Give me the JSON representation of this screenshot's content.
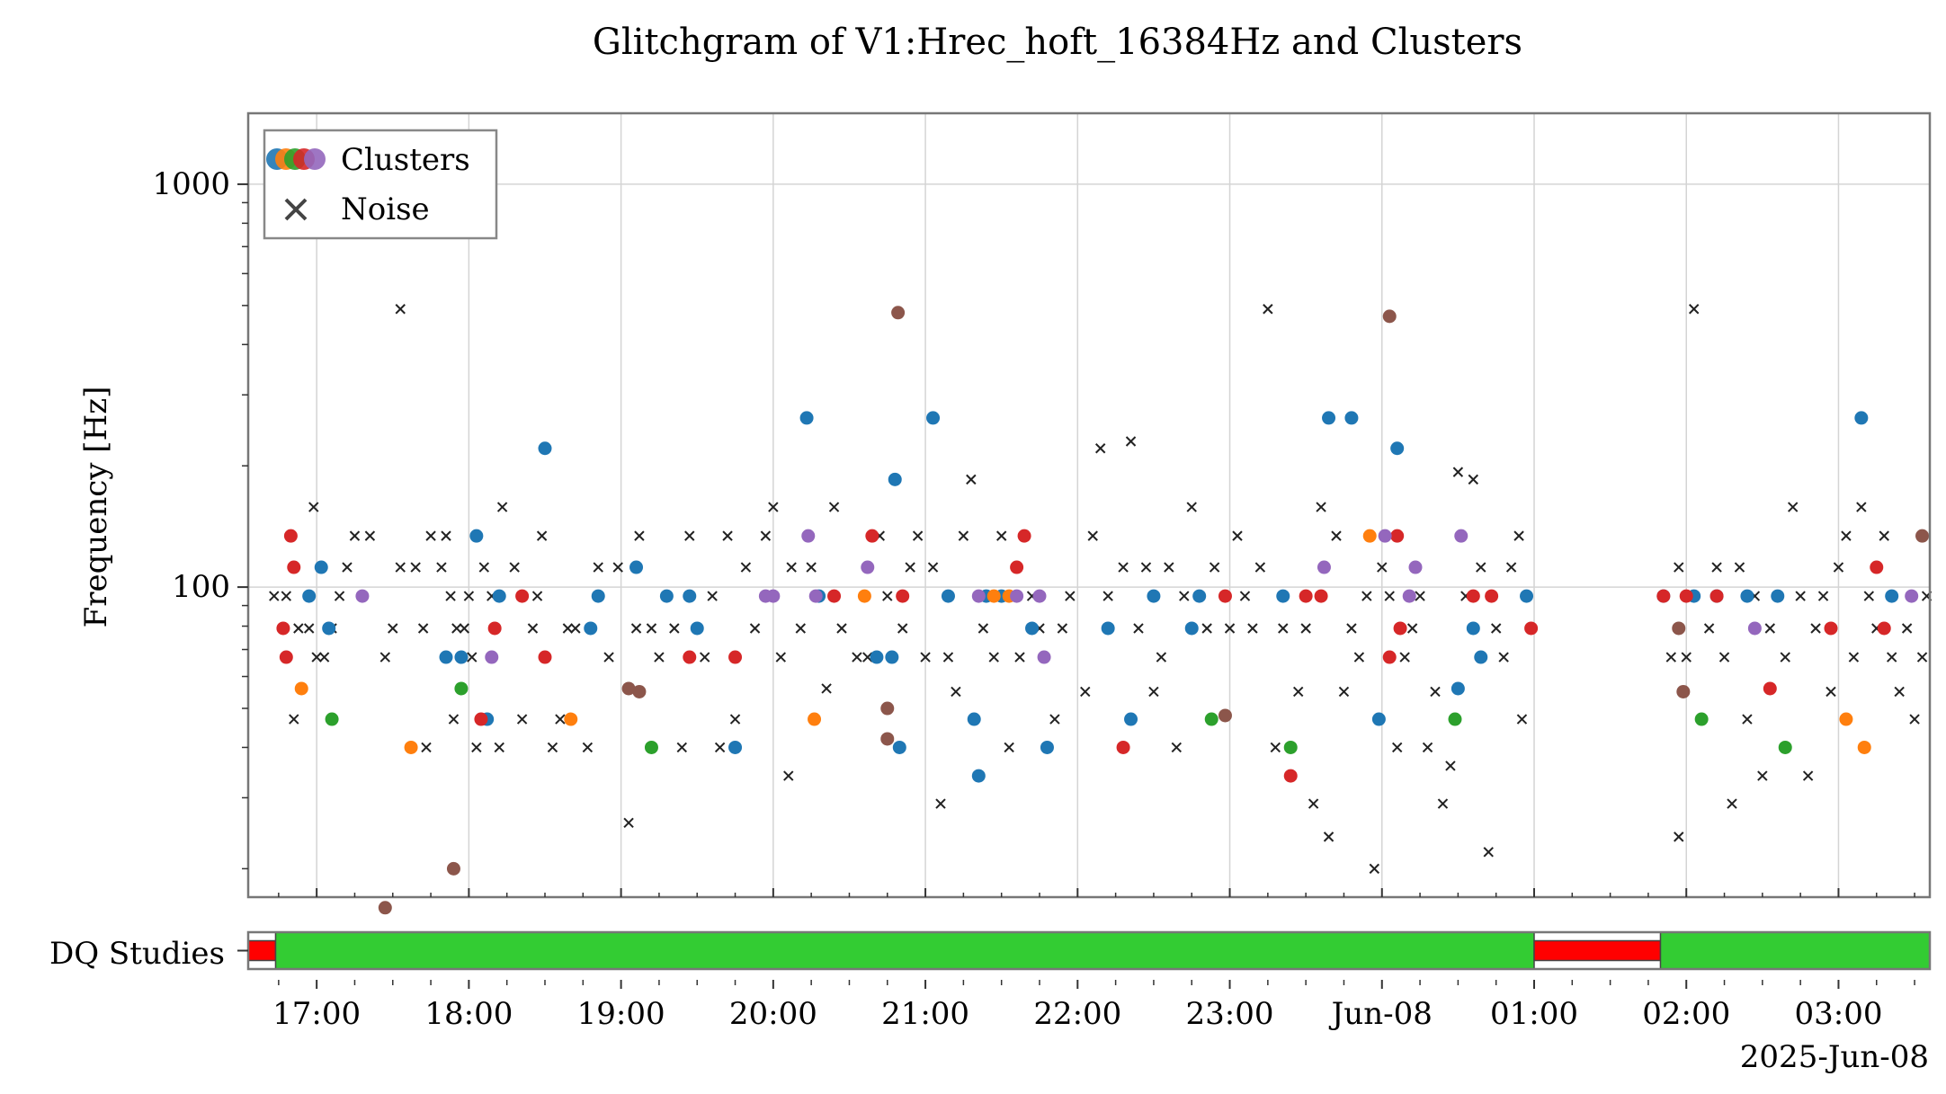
{
  "chart_data": {
    "type": "scatter",
    "title": "Glitchgram of V1:Hrec_hoft_16384Hz and Clusters",
    "ylabel": "Frequency [Hz]",
    "yscale": "log",
    "ylim": [
      17,
      1500
    ],
    "y_ticks": [
      100,
      1000
    ],
    "y_tick_labels": [
      "100",
      "1000"
    ],
    "xlim": [
      16.55,
      27.6
    ],
    "x_ticks": [
      17,
      18,
      19,
      20,
      21,
      22,
      23,
      24,
      25,
      26,
      27
    ],
    "x_tick_labels": [
      "17:00",
      "18:00",
      "19:00",
      "20:00",
      "21:00",
      "22:00",
      "23:00",
      "Jun-08",
      "01:00",
      "02:00",
      "03:00"
    ],
    "x_date_label": "2025-Jun-08",
    "grid": true,
    "legend": {
      "placement": "top-left",
      "entries": [
        "Clusters",
        "Noise"
      ]
    },
    "colors": {
      "cluster_colors": [
        "#1f77b4",
        "#ff7f0e",
        "#2ca02c",
        "#d62728",
        "#9467bd",
        "#8c564b"
      ],
      "noise": "#222222",
      "dq_good": "#33cc33",
      "dq_bad": "#ff0000"
    },
    "clusters": [
      {
        "color_index": 0,
        "points": [
          [
            17.03,
            112
          ],
          [
            17.08,
            79
          ],
          [
            16.95,
            95
          ],
          [
            17.85,
            67
          ],
          [
            17.95,
            67
          ],
          [
            18.05,
            134
          ],
          [
            18.2,
            95
          ],
          [
            18.12,
            47
          ],
          [
            18.5,
            221
          ],
          [
            18.8,
            79
          ],
          [
            18.85,
            95
          ],
          [
            19.1,
            112
          ],
          [
            19.3,
            95
          ],
          [
            19.45,
            95
          ],
          [
            19.5,
            79
          ],
          [
            19.75,
            40
          ],
          [
            20.22,
            263
          ],
          [
            20.3,
            95
          ],
          [
            20.68,
            67
          ],
          [
            20.78,
            67
          ],
          [
            20.8,
            185
          ],
          [
            20.83,
            40
          ],
          [
            21.05,
            263
          ],
          [
            21.15,
            95
          ],
          [
            21.32,
            47
          ],
          [
            21.35,
            34
          ],
          [
            21.4,
            95
          ],
          [
            21.5,
            95
          ],
          [
            21.7,
            79
          ],
          [
            21.8,
            40
          ],
          [
            22.2,
            79
          ],
          [
            22.35,
            47
          ],
          [
            22.5,
            95
          ],
          [
            22.75,
            79
          ],
          [
            22.8,
            95
          ],
          [
            23.35,
            95
          ],
          [
            23.65,
            263
          ],
          [
            23.8,
            263
          ],
          [
            23.98,
            47
          ],
          [
            24.1,
            221
          ],
          [
            24.5,
            56
          ],
          [
            24.6,
            79
          ],
          [
            24.65,
            67
          ],
          [
            24.95,
            95
          ],
          [
            25.85,
            95
          ],
          [
            26.05,
            95
          ],
          [
            26.2,
            95
          ],
          [
            26.4,
            95
          ],
          [
            26.6,
            95
          ],
          [
            27.15,
            263
          ],
          [
            27.35,
            95
          ]
        ]
      },
      {
        "color_index": 1,
        "points": [
          [
            16.9,
            56
          ],
          [
            17.62,
            40
          ],
          [
            18.67,
            47
          ],
          [
            20.27,
            47
          ],
          [
            20.6,
            95
          ],
          [
            21.45,
            95
          ],
          [
            21.55,
            95
          ],
          [
            23.92,
            134
          ],
          [
            27.05,
            47
          ],
          [
            27.17,
            40
          ]
        ]
      },
      {
        "color_index": 2,
        "points": [
          [
            17.1,
            47
          ],
          [
            17.95,
            56
          ],
          [
            19.2,
            40
          ],
          [
            22.88,
            47
          ],
          [
            23.4,
            40
          ],
          [
            24.48,
            47
          ],
          [
            26.1,
            47
          ],
          [
            26.65,
            40
          ]
        ]
      },
      {
        "color_index": 3,
        "points": [
          [
            16.78,
            79
          ],
          [
            16.8,
            67
          ],
          [
            16.85,
            112
          ],
          [
            16.83,
            134
          ],
          [
            18.08,
            47
          ],
          [
            18.17,
            79
          ],
          [
            18.35,
            95
          ],
          [
            18.5,
            67
          ],
          [
            19.45,
            67
          ],
          [
            19.75,
            67
          ],
          [
            20.4,
            95
          ],
          [
            20.65,
            134
          ],
          [
            20.85,
            95
          ],
          [
            21.6,
            112
          ],
          [
            21.65,
            134
          ],
          [
            22.3,
            40
          ],
          [
            22.97,
            95
          ],
          [
            23.4,
            34
          ],
          [
            23.5,
            95
          ],
          [
            23.6,
            95
          ],
          [
            24.05,
            67
          ],
          [
            24.12,
            79
          ],
          [
            24.1,
            134
          ],
          [
            24.6,
            95
          ],
          [
            24.72,
            95
          ],
          [
            24.98,
            79
          ],
          [
            25.85,
            95
          ],
          [
            26.0,
            95
          ],
          [
            26.2,
            95
          ],
          [
            26.55,
            56
          ],
          [
            26.95,
            79
          ],
          [
            27.25,
            112
          ],
          [
            27.3,
            79
          ]
        ]
      },
      {
        "color_index": 4,
        "points": [
          [
            17.3,
            95
          ],
          [
            18.15,
            67
          ],
          [
            19.95,
            95
          ],
          [
            20.0,
            95
          ],
          [
            20.23,
            134
          ],
          [
            20.28,
            95
          ],
          [
            20.62,
            112
          ],
          [
            21.35,
            95
          ],
          [
            21.6,
            95
          ],
          [
            21.75,
            95
          ],
          [
            21.78,
            67
          ],
          [
            23.62,
            112
          ],
          [
            24.02,
            134
          ],
          [
            24.18,
            95
          ],
          [
            24.22,
            112
          ],
          [
            24.52,
            134
          ],
          [
            26.45,
            79
          ],
          [
            27.48,
            95
          ]
        ]
      },
      {
        "color_index": 5,
        "points": [
          [
            17.45,
            16
          ],
          [
            17.9,
            20
          ],
          [
            19.05,
            56
          ],
          [
            19.12,
            55
          ],
          [
            20.75,
            50
          ],
          [
            20.75,
            42
          ],
          [
            20.82,
            480
          ],
          [
            22.97,
            48
          ],
          [
            24.05,
            470
          ],
          [
            25.95,
            79
          ],
          [
            25.98,
            55
          ],
          [
            27.55,
            134
          ]
        ]
      }
    ],
    "noise": [
      [
        16.72,
        95
      ],
      [
        16.8,
        95
      ],
      [
        16.85,
        47
      ],
      [
        16.88,
        79
      ],
      [
        16.95,
        79
      ],
      [
        16.98,
        158
      ],
      [
        17.0,
        67
      ],
      [
        17.05,
        67
      ],
      [
        17.1,
        79
      ],
      [
        17.15,
        95
      ],
      [
        17.2,
        112
      ],
      [
        17.25,
        134
      ],
      [
        17.35,
        134
      ],
      [
        17.45,
        67
      ],
      [
        17.5,
        79
      ],
      [
        17.55,
        112
      ],
      [
        17.55,
        490
      ],
      [
        17.65,
        112
      ],
      [
        17.7,
        79
      ],
      [
        17.72,
        40
      ],
      [
        17.75,
        134
      ],
      [
        17.82,
        112
      ],
      [
        17.85,
        134
      ],
      [
        17.88,
        95
      ],
      [
        17.9,
        47
      ],
      [
        17.92,
        79
      ],
      [
        17.97,
        79
      ],
      [
        18.0,
        95
      ],
      [
        18.02,
        67
      ],
      [
        18.05,
        40
      ],
      [
        18.1,
        112
      ],
      [
        18.15,
        95
      ],
      [
        18.2,
        40
      ],
      [
        18.22,
        158
      ],
      [
        18.3,
        112
      ],
      [
        18.35,
        47
      ],
      [
        18.42,
        79
      ],
      [
        18.45,
        95
      ],
      [
        18.48,
        134
      ],
      [
        18.55,
        40
      ],
      [
        18.6,
        47
      ],
      [
        18.65,
        79
      ],
      [
        18.7,
        79
      ],
      [
        18.78,
        40
      ],
      [
        18.85,
        112
      ],
      [
        18.92,
        67
      ],
      [
        18.98,
        112
      ],
      [
        19.05,
        26
      ],
      [
        19.1,
        79
      ],
      [
        19.12,
        134
      ],
      [
        19.2,
        79
      ],
      [
        19.25,
        67
      ],
      [
        19.35,
        79
      ],
      [
        19.4,
        40
      ],
      [
        19.45,
        134
      ],
      [
        19.55,
        67
      ],
      [
        19.6,
        95
      ],
      [
        19.65,
        40
      ],
      [
        19.7,
        134
      ],
      [
        19.75,
        47
      ],
      [
        19.82,
        112
      ],
      [
        19.88,
        79
      ],
      [
        19.95,
        134
      ],
      [
        20.0,
        158
      ],
      [
        20.05,
        67
      ],
      [
        20.1,
        34
      ],
      [
        20.12,
        112
      ],
      [
        20.18,
        79
      ],
      [
        20.25,
        112
      ],
      [
        20.35,
        56
      ],
      [
        20.4,
        158
      ],
      [
        20.45,
        79
      ],
      [
        20.55,
        67
      ],
      [
        20.62,
        67
      ],
      [
        20.7,
        134
      ],
      [
        20.75,
        95
      ],
      [
        20.85,
        79
      ],
      [
        20.9,
        112
      ],
      [
        20.95,
        134
      ],
      [
        21.0,
        67
      ],
      [
        21.05,
        112
      ],
      [
        21.1,
        29
      ],
      [
        21.15,
        67
      ],
      [
        21.2,
        55
      ],
      [
        21.25,
        134
      ],
      [
        21.3,
        185
      ],
      [
        21.38,
        79
      ],
      [
        21.45,
        67
      ],
      [
        21.5,
        134
      ],
      [
        21.55,
        40
      ],
      [
        21.62,
        67
      ],
      [
        21.7,
        95
      ],
      [
        21.75,
        79
      ],
      [
        21.85,
        47
      ],
      [
        21.9,
        79
      ],
      [
        21.95,
        95
      ],
      [
        22.05,
        55
      ],
      [
        22.1,
        134
      ],
      [
        22.15,
        221
      ],
      [
        22.2,
        95
      ],
      [
        22.3,
        112
      ],
      [
        22.35,
        230
      ],
      [
        22.4,
        79
      ],
      [
        22.45,
        112
      ],
      [
        22.5,
        55
      ],
      [
        22.55,
        67
      ],
      [
        22.6,
        112
      ],
      [
        22.65,
        40
      ],
      [
        22.7,
        95
      ],
      [
        22.75,
        158
      ],
      [
        22.85,
        79
      ],
      [
        22.9,
        112
      ],
      [
        23.0,
        79
      ],
      [
        23.05,
        134
      ],
      [
        23.1,
        95
      ],
      [
        23.15,
        79
      ],
      [
        23.2,
        112
      ],
      [
        23.25,
        490
      ],
      [
        23.3,
        40
      ],
      [
        23.35,
        79
      ],
      [
        23.45,
        55
      ],
      [
        23.5,
        79
      ],
      [
        23.55,
        29
      ],
      [
        23.6,
        158
      ],
      [
        23.65,
        24
      ],
      [
        23.7,
        134
      ],
      [
        23.75,
        55
      ],
      [
        23.8,
        79
      ],
      [
        23.85,
        67
      ],
      [
        23.9,
        95
      ],
      [
        23.95,
        20
      ],
      [
        24.0,
        112
      ],
      [
        24.05,
        95
      ],
      [
        24.1,
        40
      ],
      [
        24.15,
        67
      ],
      [
        24.2,
        79
      ],
      [
        24.25,
        95
      ],
      [
        24.3,
        40
      ],
      [
        24.35,
        55
      ],
      [
        24.4,
        29
      ],
      [
        24.45,
        36
      ],
      [
        24.5,
        193
      ],
      [
        24.55,
        95
      ],
      [
        24.6,
        185
      ],
      [
        24.65,
        112
      ],
      [
        24.7,
        22
      ],
      [
        24.75,
        79
      ],
      [
        24.8,
        67
      ],
      [
        24.85,
        112
      ],
      [
        24.9,
        134
      ],
      [
        24.92,
        47
      ],
      [
        25.95,
        24
      ],
      [
        26.05,
        490
      ],
      [
        25.9,
        67
      ],
      [
        25.95,
        112
      ],
      [
        26.0,
        67
      ],
      [
        26.15,
        79
      ],
      [
        26.2,
        112
      ],
      [
        26.25,
        67
      ],
      [
        26.3,
        29
      ],
      [
        26.35,
        112
      ],
      [
        26.4,
        47
      ],
      [
        26.45,
        95
      ],
      [
        26.5,
        34
      ],
      [
        26.55,
        79
      ],
      [
        26.6,
        95
      ],
      [
        26.65,
        67
      ],
      [
        26.7,
        158
      ],
      [
        26.75,
        95
      ],
      [
        26.8,
        34
      ],
      [
        26.85,
        79
      ],
      [
        26.9,
        95
      ],
      [
        26.95,
        55
      ],
      [
        27.0,
        112
      ],
      [
        27.05,
        134
      ],
      [
        27.1,
        67
      ],
      [
        27.15,
        158
      ],
      [
        27.2,
        95
      ],
      [
        27.25,
        79
      ],
      [
        27.3,
        134
      ],
      [
        27.35,
        67
      ],
      [
        27.4,
        55
      ],
      [
        27.45,
        79
      ],
      [
        27.5,
        47
      ],
      [
        27.55,
        67
      ],
      [
        27.58,
        95
      ]
    ],
    "dq_track": {
      "label": "DQ Studies",
      "segments": [
        {
          "start": 16.55,
          "end": 16.73,
          "state": "bad"
        },
        {
          "start": 16.73,
          "end": 25.0,
          "state": "good"
        },
        {
          "start": 25.0,
          "end": 25.83,
          "state": "bad"
        },
        {
          "start": 25.83,
          "end": 27.6,
          "state": "good"
        }
      ]
    }
  }
}
